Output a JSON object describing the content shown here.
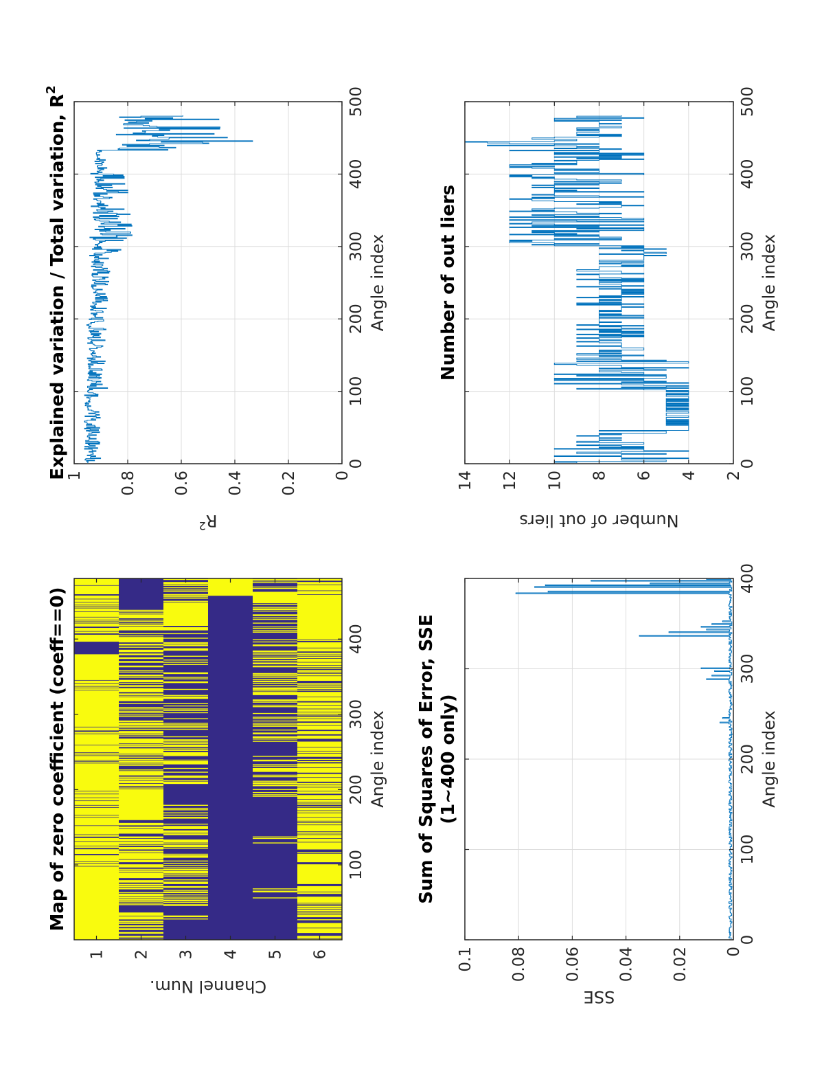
{
  "chart_data": [
    {
      "id": "map",
      "type": "heatmap",
      "title": "Map of zero coefficient (coeff==0)",
      "xlabel": "Angle index",
      "ylabel": "Channel Num.",
      "xlim": [
        0.5,
        480.5
      ],
      "xticks": [
        100,
        200,
        300,
        400
      ],
      "yticks": [
        1,
        2,
        3,
        4,
        5,
        6
      ],
      "colors": {
        "zero": "#f9fb0e",
        "nonzero": "#352a87"
      },
      "n_angles": 480,
      "channels": [
        {
          "channel": 1,
          "zero_fraction": 0.8,
          "solid_zero_ranges": [
            [
              1,
              48
            ],
            [
              50,
              95
            ],
            [
              200,
              232
            ],
            [
              285,
              318
            ],
            [
              358,
              378
            ]
          ],
          "solid_nonzero_ranges": [
            [
              380,
              396
            ]
          ]
        },
        {
          "channel": 2,
          "zero_fraction": 0.55,
          "solid_zero_ranges": [
            [
              160,
              200
            ]
          ],
          "solid_nonzero_ranges": [
            [
              440,
              480
            ]
          ]
        },
        {
          "channel": 3,
          "zero_fraction": 0.35,
          "solid_zero_ranges": [
            [
              418,
              448
            ]
          ],
          "solid_nonzero_ranges": [
            [
              1,
              25
            ],
            [
              180,
              205
            ]
          ]
        },
        {
          "channel": 4,
          "zero_fraction": 0.08,
          "solid_zero_ranges": [
            [
              458,
              480
            ]
          ],
          "solid_nonzero_ranges": [
            [
              1,
              457
            ]
          ]
        },
        {
          "channel": 5,
          "zero_fraction": 0.3,
          "solid_zero_ranges": [
            [
              448,
              460
            ]
          ],
          "solid_nonzero_ranges": [
            [
              1,
              52
            ],
            [
              70,
              127
            ],
            [
              145,
              185
            ],
            [
              245,
              262
            ]
          ]
        },
        {
          "channel": 6,
          "zero_fraction": 0.7,
          "solid_zero_ranges": [
            [
              75,
              100
            ],
            [
              400,
              458
            ]
          ],
          "solid_nonzero_ranges": []
        }
      ]
    },
    {
      "id": "r2",
      "type": "line",
      "title": "Explained variation / Total variation, R",
      "title_superscript": "2",
      "xlabel": "Angle index",
      "ylabel": "R",
      "ylabel_superscript": "2",
      "xlim": [
        0,
        500
      ],
      "ylim": [
        0,
        1
      ],
      "xticks": [
        0,
        100,
        200,
        300,
        400,
        500
      ],
      "yticks": [
        0,
        0.2,
        0.4,
        0.6,
        0.8,
        1
      ],
      "ytick_labels": [
        "0",
        "0.2",
        "0.4",
        "0.6",
        "0.8",
        "1"
      ],
      "grid": true,
      "color": "#0072bd",
      "n_points": 480,
      "segments": [
        {
          "x_range": [
            1,
            100
          ],
          "baseline": 0.96,
          "dip_min": 0.9
        },
        {
          "x_range": [
            100,
            200
          ],
          "baseline": 0.95,
          "dip_min": 0.88
        },
        {
          "x_range": [
            200,
            290
          ],
          "baseline": 0.94,
          "dip_min": 0.87
        },
        {
          "x_range": [
            290,
            300
          ],
          "baseline": 0.93,
          "dip_min": 0.79
        },
        {
          "x_range": [
            300,
            400
          ],
          "baseline": 0.94,
          "dip_min": 0.78
        },
        {
          "x_range": [
            400,
            432
          ],
          "baseline": 0.92,
          "dip_min": 0.88
        },
        {
          "x_range": [
            432,
            480
          ],
          "baseline": 0.85,
          "dip_min": 0.2
        }
      ]
    },
    {
      "id": "sse",
      "type": "line",
      "title": "Sum of Squares of Error, SSE",
      "title_line2": "(1~400 only)",
      "xlabel": "Angle index",
      "ylabel": "SSE",
      "xlim": [
        0,
        400
      ],
      "ylim": [
        0,
        0.1
      ],
      "xticks": [
        0,
        100,
        200,
        300,
        400
      ],
      "yticks": [
        0,
        0.02,
        0.04,
        0.06,
        0.08,
        0.1
      ],
      "ytick_labels": [
        "0",
        "0.02",
        "0.04",
        "0.06",
        "0.08",
        "0.1"
      ],
      "grid": true,
      "color": "#0072bd",
      "spikes": [
        {
          "x": 240,
          "y": 0.005
        },
        {
          "x": 245,
          "y": 0.004
        },
        {
          "x": 288,
          "y": 0.01
        },
        {
          "x": 292,
          "y": 0.008
        },
        {
          "x": 297,
          "y": 0.007
        },
        {
          "x": 300,
          "y": 0.012
        },
        {
          "x": 336,
          "y": 0.035
        },
        {
          "x": 340,
          "y": 0.024
        },
        {
          "x": 343,
          "y": 0.01
        },
        {
          "x": 346,
          "y": 0.012
        },
        {
          "x": 349,
          "y": 0.008
        },
        {
          "x": 352,
          "y": 0.004
        },
        {
          "x": 383,
          "y": 0.081
        },
        {
          "x": 385,
          "y": 0.069
        },
        {
          "x": 390,
          "y": 0.074
        },
        {
          "x": 392,
          "y": 0.07
        },
        {
          "x": 394,
          "y": 0.031
        },
        {
          "x": 397,
          "y": 0.053
        },
        {
          "x": 399,
          "y": 0.01
        }
      ],
      "baseline": 0.0005
    },
    {
      "id": "outliers",
      "type": "line",
      "title": "Number of out liers",
      "xlabel": "Angle index",
      "ylabel": "Number of out liers",
      "xlim": [
        0,
        500
      ],
      "ylim": [
        2,
        14
      ],
      "xticks": [
        0,
        100,
        200,
        300,
        400,
        500
      ],
      "yticks": [
        2,
        4,
        6,
        8,
        10,
        12,
        14
      ],
      "grid": true,
      "color": "#0072bd",
      "segments": [
        {
          "x_range": [
            1,
            46
          ],
          "min": 4,
          "max": 10
        },
        {
          "x_range": [
            46,
            50
          ],
          "min": 3,
          "max": 5
        },
        {
          "x_range": [
            50,
            100
          ],
          "min": 4,
          "max": 5
        },
        {
          "x_range": [
            100,
            145
          ],
          "min": 4,
          "max": 10
        },
        {
          "x_range": [
            145,
            280
          ],
          "min": 6,
          "max": 9
        },
        {
          "x_range": [
            280,
            300
          ],
          "min": 5,
          "max": 8
        },
        {
          "x_range": [
            300,
            435
          ],
          "min": 6,
          "max": 12
        },
        {
          "x_range": [
            435,
            450
          ],
          "min": 8,
          "max": 14
        },
        {
          "x_range": [
            450,
            470
          ],
          "min": 7,
          "max": 9
        },
        {
          "x_range": [
            470,
            480
          ],
          "min": 6,
          "max": 10
        }
      ]
    }
  ]
}
